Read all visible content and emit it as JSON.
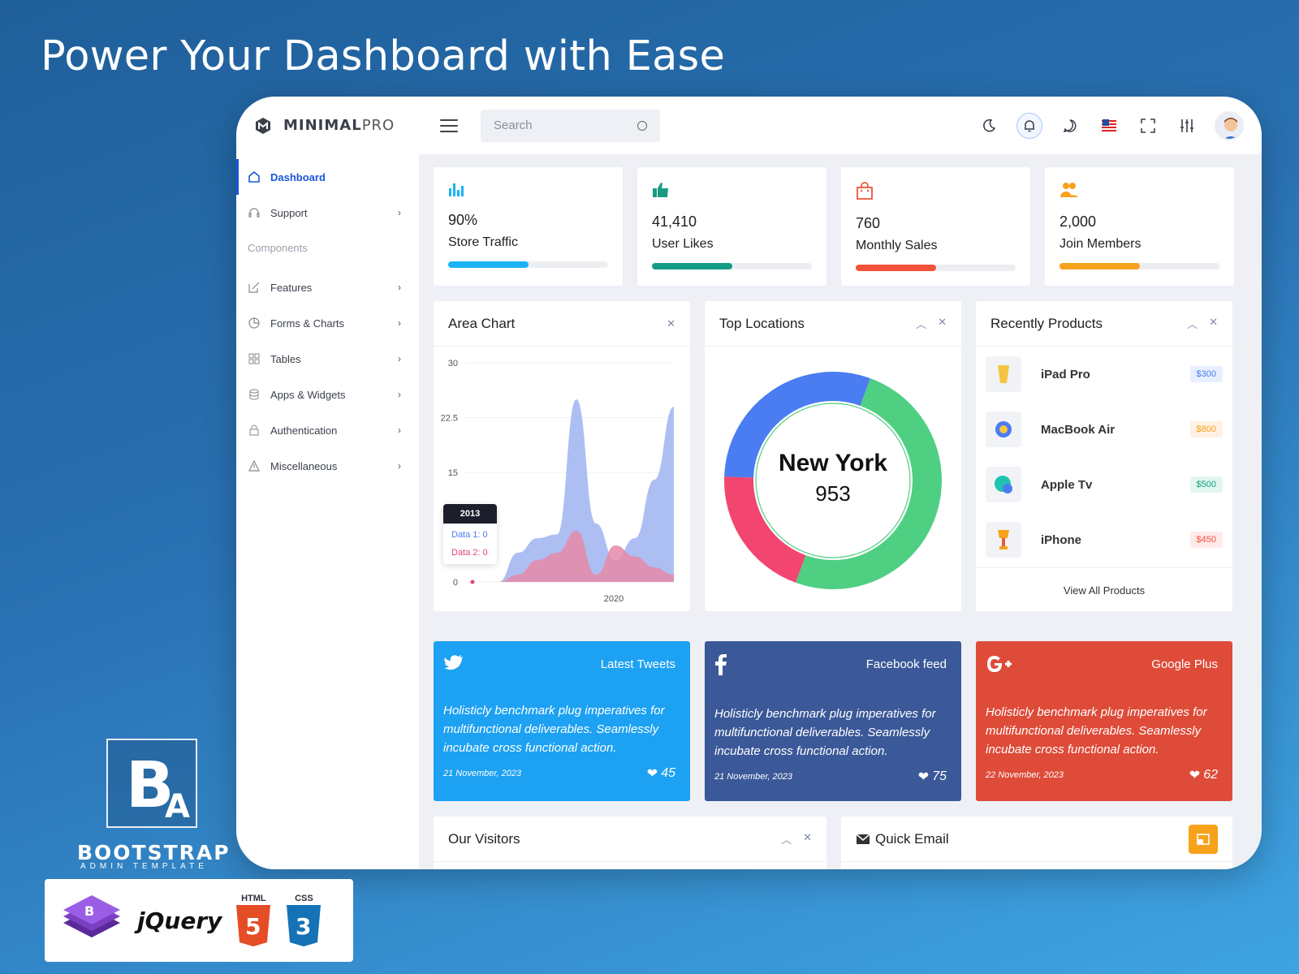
{
  "hero": {
    "title": "Power Your Dashboard with Ease"
  },
  "topbar": {
    "brand_bold": "MINIMAL",
    "brand_light": "PRO",
    "search_placeholder": "Search",
    "icons": [
      "moon-icon",
      "bell-icon",
      "chat-icon",
      "us-flag-icon",
      "fullscreen-icon",
      "sliders-icon",
      "avatar"
    ]
  },
  "sidebar": {
    "items": [
      {
        "label": "Dashboard",
        "icon": "home-icon",
        "active": true
      },
      {
        "label": "Support",
        "icon": "headset-icon"
      }
    ],
    "section": "Components",
    "components": [
      {
        "label": "Features",
        "icon": "edit-icon"
      },
      {
        "label": "Forms & Charts",
        "icon": "pie-icon"
      },
      {
        "label": "Tables",
        "icon": "grid-icon"
      },
      {
        "label": "Apps & Widgets",
        "icon": "database-icon"
      },
      {
        "label": "Authentication",
        "icon": "lock-icon"
      },
      {
        "label": "Miscellaneous",
        "icon": "warning-icon"
      }
    ]
  },
  "stats": [
    {
      "value": "90%",
      "label": "Store Traffic",
      "progress": 0.5,
      "color": "#1ab3f5"
    },
    {
      "value": "41,410",
      "label": "User Likes",
      "progress": 0.5,
      "color": "#169c84"
    },
    {
      "value": "760",
      "label": "Monthly Sales",
      "progress": 0.5,
      "color": "#f4523b"
    },
    {
      "value": "2,000",
      "label": "Join Members",
      "progress": 0.5,
      "color": "#f7a21b"
    }
  ],
  "area_chart": {
    "title": "Area Chart",
    "tooltip": {
      "year": "2013",
      "data1": "Data 1: 0",
      "data2": "Data 2: 0"
    }
  },
  "chart_data": {
    "type": "area",
    "title": "Area Chart",
    "y_ticks": [
      "30",
      "22.5",
      "15",
      "0"
    ],
    "x_ticks": [
      "2020"
    ],
    "ylim": [
      0,
      30
    ],
    "series": [
      {
        "name": "Data 1",
        "color": "#9fb4f0",
        "values": [
          0,
          4,
          6,
          6.5,
          25,
          8,
          3,
          6,
          14,
          24
        ]
      },
      {
        "name": "Data 2",
        "color": "#e58aa8",
        "values": [
          0,
          1,
          3,
          4,
          7,
          1,
          5,
          3.5,
          2,
          1
        ]
      }
    ]
  },
  "top_locations": {
    "title": "Top Locations",
    "city": "New York",
    "count": "953",
    "segments": [
      {
        "value": 50,
        "color": "#4fcf82"
      },
      {
        "value": 20,
        "color": "#f2456f"
      },
      {
        "value": 30,
        "color": "#4a7cf2"
      }
    ]
  },
  "products": {
    "title": "Recently Products",
    "items": [
      {
        "name": "iPad Pro",
        "price": "$300",
        "bg": "#e7efff",
        "fg": "#4a7cf2"
      },
      {
        "name": "MacBook Air",
        "price": "$800",
        "bg": "#fff1e3",
        "fg": "#f7a21b"
      },
      {
        "name": "Apple Tv",
        "price": "$500",
        "bg": "#e1f7ee",
        "fg": "#169c84"
      },
      {
        "name": "iPhone",
        "price": "$450",
        "bg": "#ffe9e9",
        "fg": "#f4523b"
      }
    ],
    "view_all": "View All Products"
  },
  "social": [
    {
      "title": "Latest Tweets",
      "text": "Holisticly benchmark plug imperatives for multifunctional deliverables. Seamlessly incubate cross functional action.",
      "date": "21 November, 2023",
      "likes": "45",
      "color": "#1da1f2",
      "icon": "twitter-icon"
    },
    {
      "title": "Facebook feed",
      "text": "Holisticly benchmark plug imperatives for multifunctional deliverables. Seamlessly incubate cross functional action.",
      "date": "21 November, 2023",
      "likes": "75",
      "color": "#3b5998",
      "icon": "facebook-icon"
    },
    {
      "title": "Google Plus",
      "text": "Holisticly benchmark plug imperatives for multifunctional deliverables. Seamlessly incubate cross functional action.",
      "date": "22 November, 2023",
      "likes": "62",
      "color": "#de4b39",
      "icon": "google-plus-icon"
    }
  ],
  "visitors": {
    "title": "Our Visitors"
  },
  "quick_email": {
    "title": "Quick Email"
  },
  "badges": {
    "ba_text": "BOOTSTRAP",
    "ba_sub": "ADMIN TEMPLATE",
    "jquery": "jQuery",
    "html": "HTML",
    "css": "CSS"
  }
}
